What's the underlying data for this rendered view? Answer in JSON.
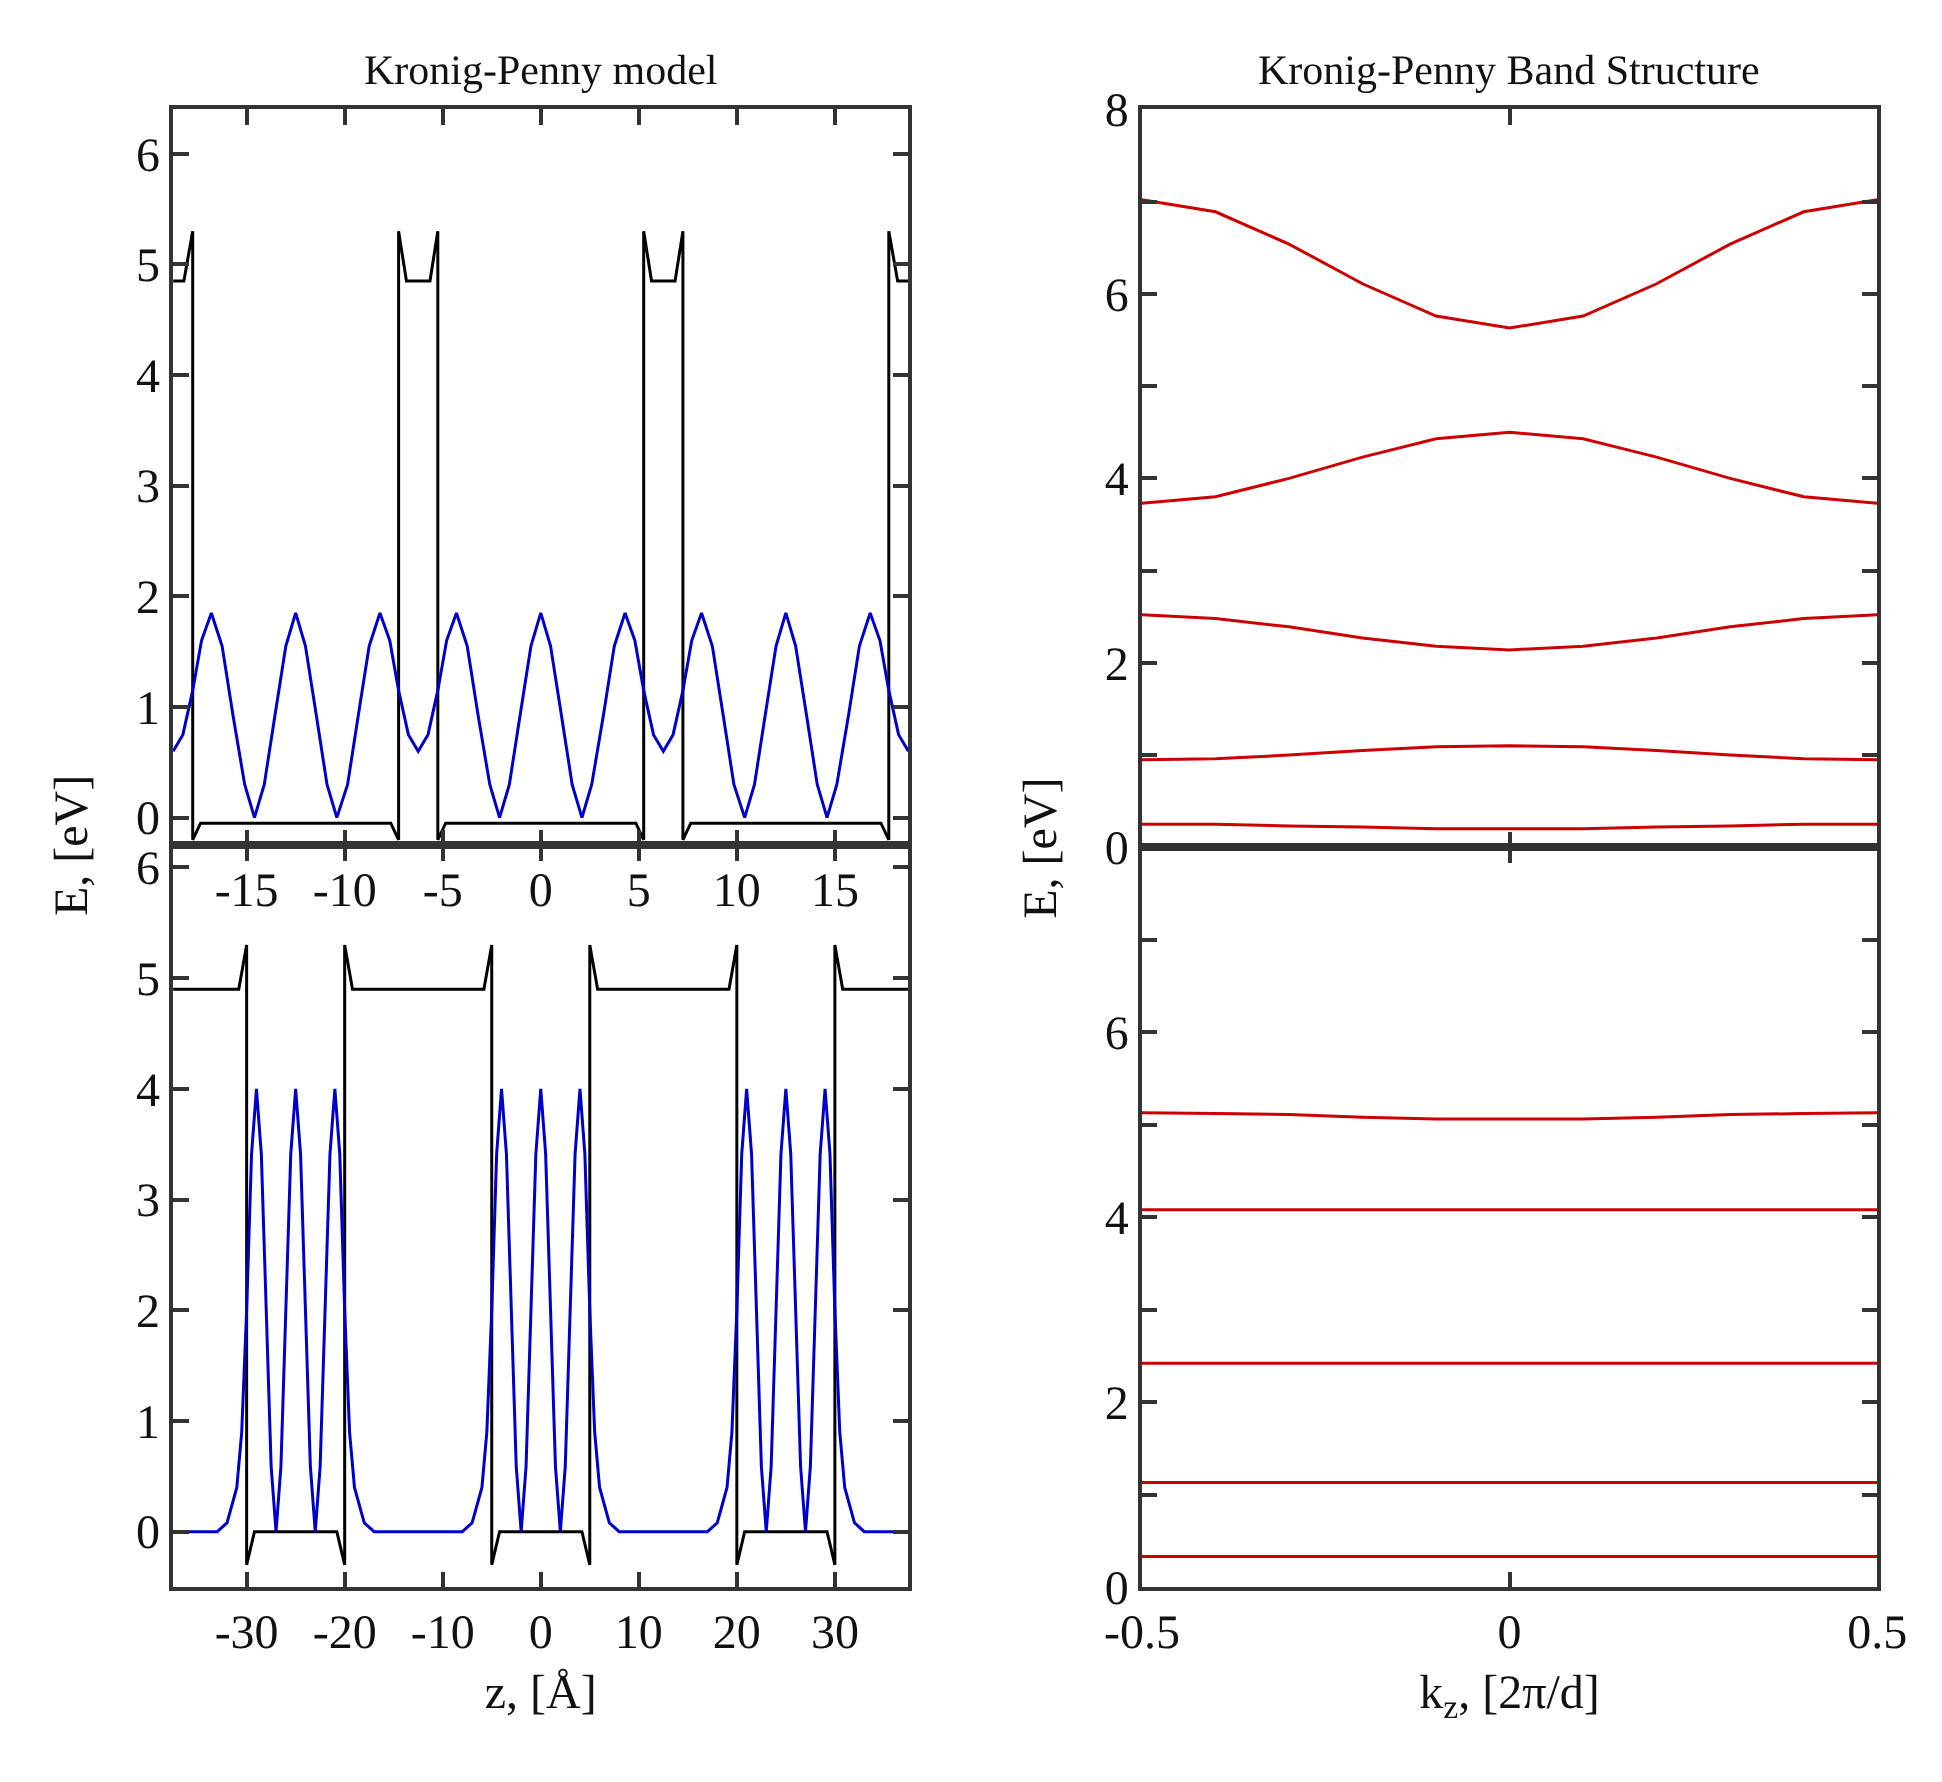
{
  "chart_data": [
    {
      "type": "line",
      "title": "Kronig-Penny model",
      "ylabel": "E, [eV]",
      "xlim": [
        -18.75,
        18.75
      ],
      "ylim": [
        -0.25,
        6.4
      ],
      "xticks": [
        -15,
        -10,
        -5,
        0,
        5,
        10,
        15
      ],
      "yticks": [
        0,
        1,
        2,
        3,
        4,
        5,
        6
      ],
      "series": [
        {
          "color": "#000000",
          "x": [
            -18.75,
            -18.2,
            -17.75,
            -17.75,
            -17.35,
            -7.65,
            -7.25,
            -7.25,
            -6.85,
            -5.65,
            -5.25,
            -5.25,
            -4.85,
            4.85,
            5.25,
            5.25,
            5.65,
            6.85,
            7.25,
            7.25,
            7.65,
            17.35,
            17.75,
            17.75,
            18.2,
            18.75
          ],
          "values": [
            4.85,
            4.85,
            5.3,
            -0.2,
            -0.05,
            -0.05,
            -0.2,
            5.3,
            4.85,
            4.85,
            5.3,
            -0.2,
            -0.05,
            -0.05,
            -0.2,
            5.3,
            4.85,
            4.85,
            5.3,
            -0.2,
            -0.05,
            -0.05,
            -0.2,
            5.3,
            4.85,
            4.85
          ]
        },
        {
          "color": "#0000cc",
          "x": [
            -18.75,
            -18.25,
            -17.75,
            -17.3,
            -16.8,
            -16.25,
            -15.7,
            -15.1,
            -14.6,
            -14.1,
            -13.55,
            -13.0,
            -12.5,
            -12.0,
            -11.45,
            -10.9,
            -10.4,
            -9.85,
            -9.3,
            -8.75,
            -8.2,
            -7.7,
            -7.25,
            -6.75,
            -6.25,
            -5.75,
            -5.25,
            -4.8,
            -4.3,
            -3.75,
            -3.2,
            -2.6,
            -2.1,
            -1.6,
            -1.05,
            -0.5,
            0,
            0.5,
            1.05,
            1.6,
            2.1,
            2.6,
            3.2,
            3.75,
            4.3,
            4.8,
            5.25,
            5.75,
            6.25,
            6.75,
            7.25,
            7.7,
            8.2,
            8.75,
            9.3,
            9.85,
            10.4,
            10.9,
            11.45,
            12.0,
            12.5,
            13.0,
            13.55,
            14.1,
            14.6,
            15.1,
            15.7,
            16.25,
            16.8,
            17.3,
            17.75,
            18.25,
            18.75
          ],
          "values": [
            0.6,
            0.75,
            1.15,
            1.6,
            1.85,
            1.55,
            0.93,
            0.3,
            0,
            0.3,
            0.93,
            1.55,
            1.85,
            1.55,
            0.93,
            0.3,
            0,
            0.3,
            0.93,
            1.55,
            1.85,
            1.6,
            1.15,
            0.75,
            0.6,
            0.75,
            1.15,
            1.6,
            1.85,
            1.55,
            0.93,
            0.3,
            0,
            0.3,
            0.93,
            1.55,
            1.85,
            1.55,
            0.93,
            0.3,
            0,
            0.3,
            0.93,
            1.55,
            1.85,
            1.6,
            1.15,
            0.75,
            0.6,
            0.75,
            1.15,
            1.6,
            1.85,
            1.55,
            0.93,
            0.3,
            0,
            0.3,
            0.93,
            1.55,
            1.85,
            1.55,
            0.93,
            0.3,
            0,
            0.3,
            0.93,
            1.55,
            1.85,
            1.6,
            1.15,
            0.75,
            0.6
          ]
        }
      ]
    },
    {
      "type": "line",
      "xlabel": "z, [Å]",
      "xlim": [
        -37.5,
        37.5
      ],
      "ylim": [
        -0.5,
        6.2
      ],
      "xticks": [
        -30,
        -20,
        -10,
        0,
        10,
        20,
        30
      ],
      "yticks": [
        0,
        1,
        2,
        3,
        4,
        5,
        6
      ],
      "series": [
        {
          "color": "#000000",
          "x": [
            -37.5,
            -30.8,
            -30,
            -30,
            -29.2,
            -20.8,
            -20,
            -20,
            -19.2,
            -5.8,
            -5,
            -5,
            -4.2,
            4.2,
            5,
            5,
            5.8,
            19.2,
            20,
            20,
            20.8,
            29.2,
            30,
            30,
            30.8,
            37.5
          ],
          "values": [
            4.9,
            4.9,
            5.3,
            -0.3,
            0,
            0,
            -0.3,
            5.3,
            4.9,
            4.9,
            5.3,
            -0.3,
            0,
            0,
            -0.3,
            5.3,
            4.9,
            4.9,
            5.3,
            -0.3,
            0,
            0,
            -0.3,
            5.3,
            4.9,
            4.9
          ]
        },
        {
          "color": "#0000cc",
          "x": [
            -37.5,
            -33,
            -32,
            -31,
            -30.5,
            -30,
            -29.5,
            -29,
            -28.5,
            -28,
            -27.5,
            -27,
            -26.5,
            -26,
            -25.5,
            -25,
            -24.5,
            -24,
            -23.5,
            -23,
            -22.5,
            -22,
            -21.5,
            -21,
            -20.5,
            -20,
            -19.5,
            -19,
            -18,
            -17,
            -8,
            -7,
            -6,
            -5.5,
            -5,
            -4.5,
            -4,
            -3.5,
            -3,
            -2.5,
            -2,
            -1.5,
            -1,
            -0.5,
            0,
            0.5,
            1,
            1.5,
            2,
            2.5,
            3,
            3.5,
            4,
            4.5,
            5,
            5.5,
            6,
            7,
            8,
            17,
            18,
            19,
            19.5,
            20,
            20.5,
            21,
            21.5,
            22,
            22.5,
            23,
            23.5,
            24,
            24.5,
            25,
            25.5,
            26,
            26.5,
            27,
            27.5,
            28,
            28.5,
            29,
            29.5,
            30,
            30.5,
            31,
            32,
            33,
            37.5
          ],
          "values": [
            0,
            0,
            0.08,
            0.4,
            0.9,
            2.0,
            3.41,
            4.0,
            3.41,
            2.0,
            0.59,
            0,
            0.59,
            2.0,
            3.41,
            4.0,
            3.41,
            2.0,
            0.59,
            0,
            0.59,
            2.0,
            3.41,
            4.0,
            3.41,
            2.0,
            0.9,
            0.4,
            0.08,
            0,
            0,
            0.08,
            0.4,
            0.9,
            2.0,
            3.41,
            4.0,
            3.41,
            2.0,
            0.59,
            0,
            0.59,
            2.0,
            3.41,
            4.0,
            3.41,
            2.0,
            0.59,
            0,
            0.59,
            2.0,
            3.41,
            4.0,
            3.41,
            2.0,
            0.9,
            0.4,
            0.08,
            0,
            0,
            0.08,
            0.4,
            0.9,
            2.0,
            3.41,
            4.0,
            3.41,
            2.0,
            0.59,
            0,
            0.59,
            2.0,
            3.41,
            4.0,
            3.41,
            2.0,
            0.59,
            0,
            0.59,
            2.0,
            3.41,
            4.0,
            3.41,
            2.0,
            0.9,
            0.4,
            0.08,
            0,
            0
          ]
        }
      ]
    },
    {
      "type": "line",
      "title": "Kronig-Penny Band Structure",
      "ylabel": "E, [eV]",
      "tick_labels": "y",
      "x": [
        -0.5,
        -0.4,
        -0.3,
        -0.2,
        -0.1,
        0,
        0.1,
        0.2,
        0.3,
        0.4,
        0.5
      ],
      "xlim": [
        -0.5,
        0.5
      ],
      "ylim": [
        0,
        8
      ],
      "xticks": [
        -0.5,
        0,
        0.5
      ],
      "yticks": [
        0,
        {
          "value": 1,
          "label": null
        },
        2,
        {
          "value": 3,
          "label": null
        },
        4,
        {
          "value": 5,
          "label": null
        },
        6,
        {
          "value": 7,
          "label": null
        },
        8
      ],
      "series": [
        {
          "color": "#cc0000",
          "values": [
            0.25,
            0.25,
            0.23,
            0.22,
            0.2,
            0.2,
            0.2,
            0.22,
            0.23,
            0.25,
            0.25
          ]
        },
        {
          "color": "#cc0000",
          "values": [
            0.95,
            0.96,
            1.0,
            1.05,
            1.09,
            1.1,
            1.09,
            1.05,
            1.0,
            0.96,
            0.95
          ]
        },
        {
          "color": "#cc0000",
          "values": [
            2.52,
            2.48,
            2.39,
            2.27,
            2.18,
            2.14,
            2.18,
            2.27,
            2.39,
            2.48,
            2.52
          ]
        },
        {
          "color": "#cc0000",
          "values": [
            3.73,
            3.8,
            4.0,
            4.23,
            4.43,
            4.5,
            4.43,
            4.23,
            4.0,
            3.8,
            3.73
          ]
        },
        {
          "color": "#cc0000",
          "values": [
            7.02,
            6.89,
            6.54,
            6.11,
            5.76,
            5.63,
            5.76,
            6.11,
            6.54,
            6.89,
            7.02
          ]
        }
      ]
    },
    {
      "type": "line",
      "xlabel": "k$_{z}$, [2π/d]",
      "x": [
        -0.5,
        -0.4,
        -0.3,
        -0.2,
        -0.1,
        0,
        0.1,
        0.2,
        0.3,
        0.4,
        0.5
      ],
      "xlim": [
        -0.5,
        0.5
      ],
      "ylim": [
        0,
        8
      ],
      "xticks": [
        -0.5,
        0,
        0.5
      ],
      "yticks": [
        0,
        {
          "value": 1,
          "label": null
        },
        2,
        {
          "value": 3,
          "label": null
        },
        4,
        {
          "value": 5,
          "label": null
        },
        6,
        {
          "value": 7,
          "label": null
        }
      ],
      "series": [
        {
          "color": "#cc0000",
          "values": [
            0.33,
            0.33,
            0.33,
            0.33,
            0.33,
            0.33,
            0.33,
            0.33,
            0.33,
            0.33,
            0.33
          ]
        },
        {
          "color": "#cc0000",
          "values": [
            1.13,
            1.13,
            1.13,
            1.13,
            1.13,
            1.13,
            1.13,
            1.13,
            1.13,
            1.13,
            1.13
          ]
        },
        {
          "color": "#cc0000",
          "values": [
            2.42,
            2.42,
            2.42,
            2.42,
            2.42,
            2.42,
            2.42,
            2.42,
            2.42,
            2.42,
            2.42
          ]
        },
        {
          "color": "#cc0000",
          "values": [
            4.08,
            4.08,
            4.08,
            4.08,
            4.08,
            4.08,
            4.08,
            4.08,
            4.08,
            4.08,
            4.08
          ]
        },
        {
          "color": "#cc0000",
          "values": [
            5.13,
            5.12,
            5.11,
            5.08,
            5.06,
            5.06,
            5.06,
            5.08,
            5.11,
            5.12,
            5.13
          ]
        }
      ]
    }
  ]
}
